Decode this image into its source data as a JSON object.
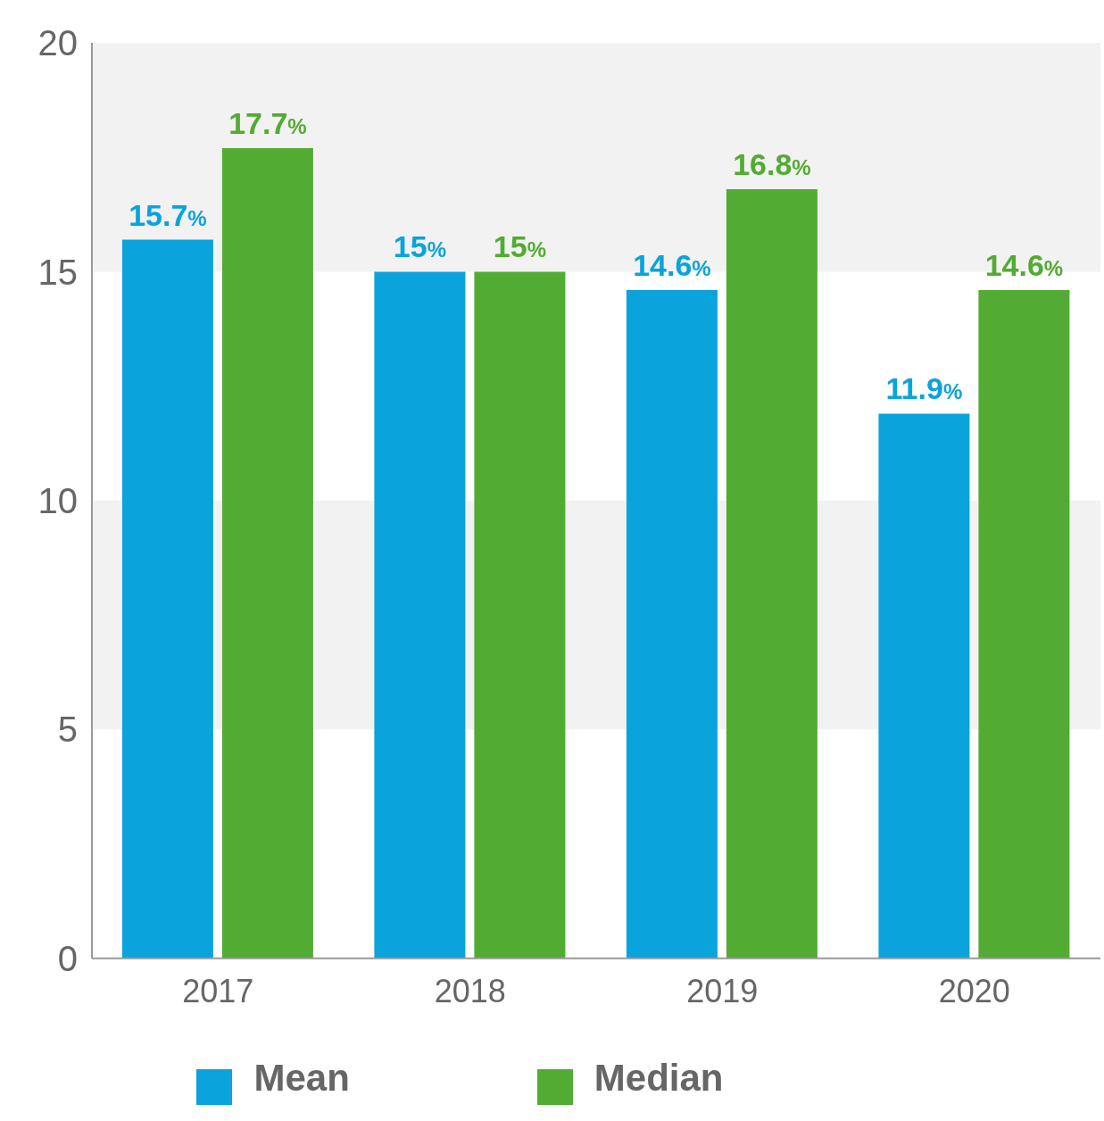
{
  "chart_data": {
    "type": "bar",
    "categories": [
      "2017",
      "2018",
      "2019",
      "2020"
    ],
    "series": [
      {
        "name": "Mean",
        "color": "#0aa3dc",
        "values": [
          15.7,
          15,
          14.6,
          11.9
        ],
        "value_labels": [
          "15.7%",
          "15%",
          "14.6%",
          "11.9%"
        ]
      },
      {
        "name": "Median",
        "color": "#52ab32",
        "values": [
          17.7,
          15,
          16.8,
          14.6
        ],
        "value_labels": [
          "17.7%",
          "15%",
          "16.8%",
          "14.6%"
        ]
      }
    ],
    "ylim": [
      0,
      20
    ],
    "yticks": [
      0,
      5,
      10,
      15,
      20
    ],
    "legend": "bottom",
    "bands": [
      {
        "axis": "y",
        "from": 5,
        "to": 10,
        "color": "#f2f2f2"
      },
      {
        "axis": "y",
        "from": 15,
        "to": 20,
        "color": "#f2f2f2"
      }
    ]
  }
}
